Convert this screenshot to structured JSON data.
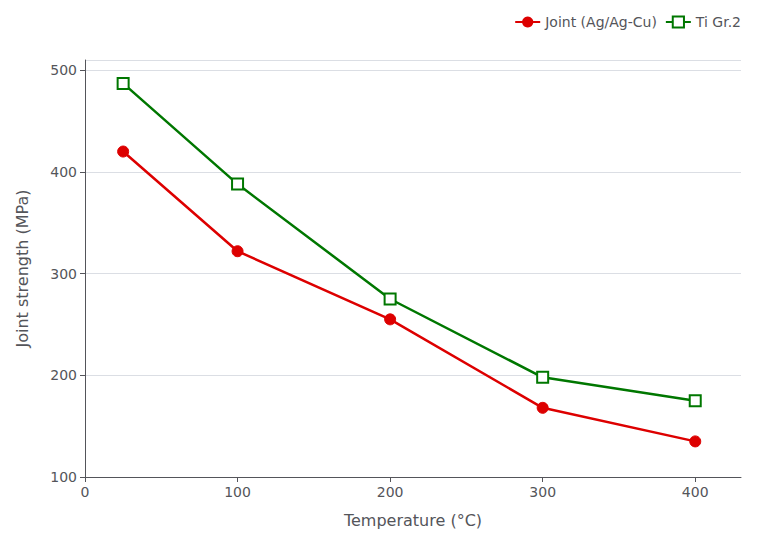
{
  "chart_data": {
    "type": "line",
    "xlabel": "Temperature (°C)",
    "ylabel": "Joint strength (MPa)",
    "x": [
      25,
      100,
      200,
      300,
      400
    ],
    "series": [
      {
        "name": "Joint (Ag/Ag-Cu)",
        "color": "#dd0000",
        "marker": "circle",
        "values": [
          420,
          322,
          255,
          168,
          135
        ]
      },
      {
        "name": "Ti Gr.2",
        "color": "#007700",
        "marker": "square",
        "values": [
          487,
          388,
          275,
          198,
          175
        ]
      }
    ],
    "xlim": [
      0,
      430
    ],
    "xticks": [
      0,
      100,
      200,
      300,
      400
    ],
    "ylim": [
      100,
      510
    ],
    "yticks": [
      100,
      200,
      300,
      400,
      500
    ],
    "grid": true,
    "legend": "upper right"
  }
}
